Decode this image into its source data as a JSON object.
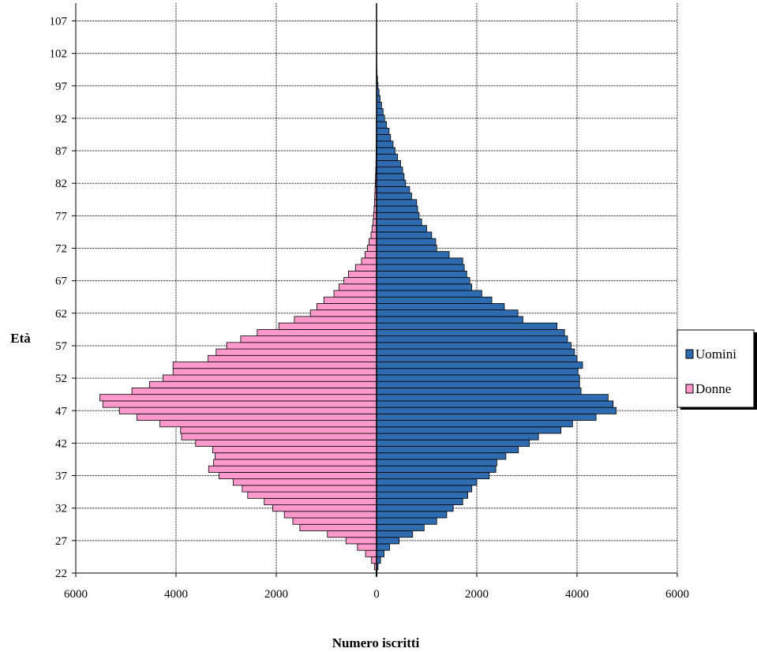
{
  "chart_data": {
    "type": "bar",
    "orientation": "horizontal",
    "subtype": "population-pyramid",
    "title": "",
    "xlabel": "Numero iscritti",
    "ylabel": "Età",
    "xlim": [
      -6000,
      6000
    ],
    "x_tick_values": [
      -6000,
      -4000,
      -2000,
      0,
      2000,
      4000,
      6000
    ],
    "x_tick_labels": [
      "6000",
      "4000",
      "2000",
      "0",
      "2000",
      "4000",
      "6000"
    ],
    "y_tick_values": [
      22,
      27,
      32,
      37,
      42,
      47,
      52,
      57,
      62,
      67,
      72,
      77,
      82,
      87,
      92,
      97,
      102,
      107
    ],
    "y_tick_labels": [
      "22",
      "27",
      "32",
      "37",
      "42",
      "47",
      "52",
      "57",
      "62",
      "67",
      "72",
      "77",
      "82",
      "87",
      "92",
      "97",
      "102",
      "107"
    ],
    "grid": true,
    "legend_position": "right",
    "ages": [
      22,
      23,
      24,
      25,
      26,
      27,
      28,
      29,
      30,
      31,
      32,
      33,
      34,
      35,
      36,
      37,
      38,
      39,
      40,
      41,
      42,
      43,
      44,
      45,
      46,
      47,
      48,
      49,
      50,
      51,
      52,
      53,
      54,
      55,
      56,
      57,
      58,
      59,
      60,
      61,
      62,
      63,
      64,
      65,
      66,
      67,
      68,
      69,
      70,
      71,
      72,
      73,
      74,
      75,
      76,
      77,
      78,
      79,
      80,
      81,
      82,
      83,
      84,
      85,
      86,
      87,
      88,
      89,
      90,
      91,
      92,
      93,
      94,
      95,
      96,
      97,
      98,
      99,
      100,
      101,
      102,
      103,
      104,
      105,
      106,
      107
    ],
    "series": [
      {
        "name": "Uomini",
        "color": "#2E6BAF",
        "values": [
          10,
          30,
          80,
          150,
          260,
          450,
          720,
          950,
          1200,
          1400,
          1530,
          1720,
          1820,
          1900,
          2000,
          2250,
          2380,
          2400,
          2580,
          2830,
          3050,
          3230,
          3680,
          3910,
          4380,
          4780,
          4720,
          4620,
          4080,
          4050,
          4050,
          4020,
          4110,
          4000,
          3950,
          3880,
          3810,
          3750,
          3600,
          2920,
          2820,
          2550,
          2300,
          2100,
          1900,
          1860,
          1800,
          1750,
          1720,
          1450,
          1200,
          1180,
          1100,
          1000,
          900,
          850,
          820,
          800,
          700,
          660,
          580,
          550,
          520,
          480,
          420,
          370,
          330,
          280,
          250,
          200,
          160,
          130,
          100,
          70,
          50,
          30,
          20,
          10,
          6,
          4,
          3,
          2,
          1,
          1,
          1,
          1
        ]
      },
      {
        "name": "Donne",
        "color": "#FF99CC",
        "values": [
          10,
          40,
          100,
          220,
          380,
          610,
          980,
          1530,
          1670,
          1840,
          2070,
          2240,
          2570,
          2680,
          2860,
          3140,
          3350,
          3250,
          3220,
          3270,
          3610,
          3890,
          3910,
          4320,
          4780,
          5130,
          5460,
          5520,
          4880,
          4530,
          4260,
          4060,
          4060,
          3360,
          3200,
          2990,
          2710,
          2380,
          1950,
          1640,
          1320,
          1190,
          1050,
          850,
          750,
          650,
          560,
          420,
          300,
          230,
          180,
          150,
          110,
          90,
          70,
          60,
          50,
          40,
          35,
          30,
          25,
          20,
          15,
          12,
          10,
          8,
          6,
          5,
          4,
          3,
          2,
          2,
          1,
          1,
          1,
          1,
          1,
          1,
          0,
          0,
          0,
          0,
          0,
          0,
          0,
          0
        ]
      }
    ]
  }
}
